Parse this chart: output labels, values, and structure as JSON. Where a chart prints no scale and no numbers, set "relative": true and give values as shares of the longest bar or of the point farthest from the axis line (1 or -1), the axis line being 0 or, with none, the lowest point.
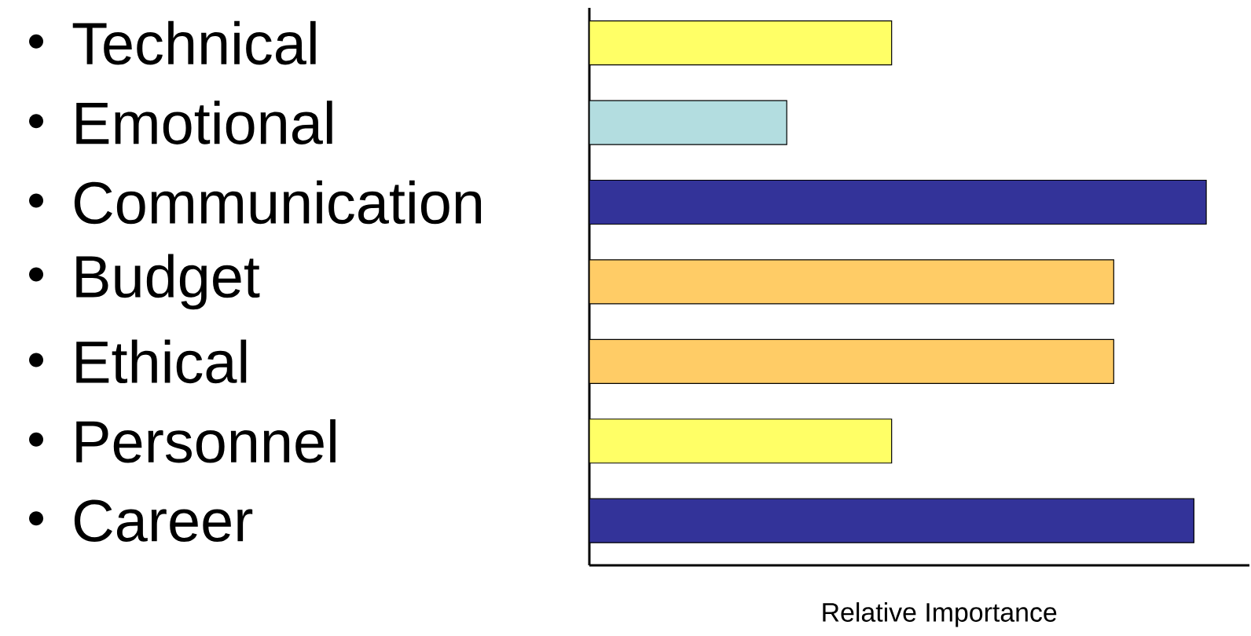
{
  "chart_data": {
    "type": "bar",
    "orientation": "horizontal",
    "relative": true,
    "xlabel": "Relative Importance",
    "categories": [
      "Technical",
      "Emotional",
      "Communication",
      "Budget",
      "Ethical",
      "Personnel",
      "Career"
    ],
    "values": [
      0.49,
      0.32,
      1,
      0.85,
      0.85,
      0.49,
      0.98
    ],
    "colors": [
      "#ffff66",
      "#b3dde0",
      "#333399",
      "#ffcc66",
      "#ffcc66",
      "#ffff66",
      "#333399"
    ]
  }
}
